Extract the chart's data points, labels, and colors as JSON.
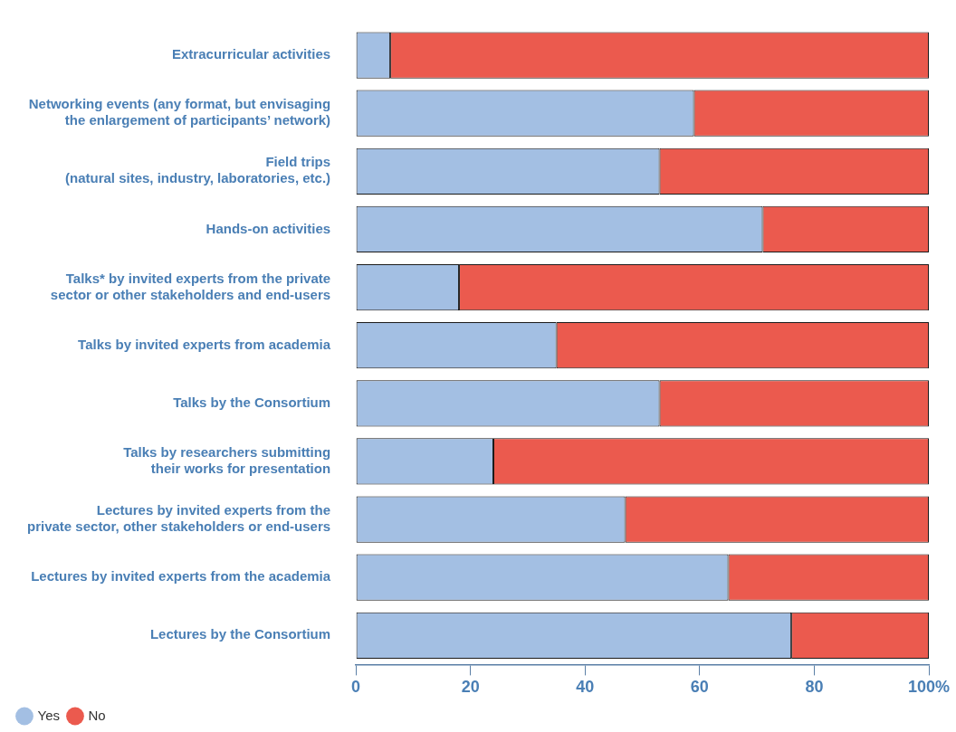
{
  "chart_data": {
    "type": "bar",
    "orientation": "horizontal",
    "stacked": true,
    "categories": [
      "Extracurricular activities",
      "Networking events (any format, but envisaging\nthe enlargement of participants’ network)",
      "Field trips\n(natural sites, industry, laboratories, etc.)",
      "Hands-on activities",
      "Talks* by invited experts from the private\nsector or other stakeholders and end-users",
      "Talks by invited experts from academia",
      "Talks by the Consortium",
      "Talks by researchers submitting\ntheir works for presentation",
      "Lectures by invited experts from the\nprivate sector, other stakeholders or end-users",
      "Lectures by invited experts from the academia",
      "Lectures by the Consortium"
    ],
    "series": [
      {
        "name": "Yes",
        "color": "#a3bfe3",
        "values": [
          6,
          59,
          53,
          71,
          18,
          35,
          53,
          24,
          47,
          65,
          76
        ]
      },
      {
        "name": "No",
        "color": "#eb5a4e",
        "values": [
          94,
          41,
          47,
          29,
          82,
          65,
          47,
          76,
          53,
          35,
          24
        ]
      }
    ],
    "xlim": [
      0,
      100
    ],
    "xticks": [
      0,
      20,
      40,
      60,
      80,
      {
        "value": 100,
        "label": "100%"
      }
    ],
    "grid": false,
    "legend": "bottom left"
  }
}
